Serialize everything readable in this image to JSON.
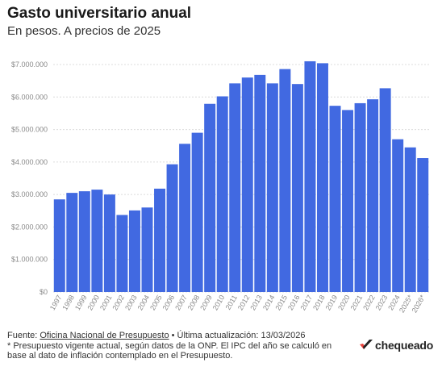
{
  "chart_data": {
    "type": "bar",
    "title": "Gasto universitario anual",
    "subtitle": "En pesos. A precios de 2025",
    "categories": [
      "1997",
      "1998",
      "1999",
      "2000",
      "2001",
      "2002",
      "2003",
      "2004",
      "2005",
      "2006",
      "2007",
      "2008",
      "2009",
      "2010",
      "2011",
      "2012",
      "2013",
      "2014",
      "2015",
      "2016",
      "2017",
      "2018",
      "2019",
      "2020",
      "2021",
      "2022",
      "2023",
      "2024",
      "2025*",
      "2026*"
    ],
    "values": [
      2850000,
      3050000,
      3100000,
      3150000,
      3000000,
      2370000,
      2510000,
      2600000,
      3180000,
      3930000,
      4560000,
      4900000,
      5790000,
      6020000,
      6420000,
      6600000,
      6680000,
      6420000,
      6860000,
      6400000,
      7100000,
      7040000,
      5730000,
      5600000,
      5810000,
      5930000,
      6270000,
      4700000,
      4450000,
      4120000
    ],
    "ylim": [
      0,
      7000000
    ],
    "yticks": [
      0,
      1000000,
      2000000,
      3000000,
      4000000,
      5000000,
      6000000,
      7000000
    ],
    "ytick_labels": [
      "$0",
      "$1.000.000",
      "$2.000.000",
      "$3.000.000",
      "$4.000.000",
      "$5.000.000",
      "$6.000.000",
      "$7.000.000"
    ],
    "xlabel": "",
    "ylabel": "",
    "grid": true,
    "bar_color": "#4169e1"
  },
  "footer": {
    "source_prefix": "Fuente: ",
    "source_link": "Oficina Nacional de Presupuesto",
    "source_suffix": " • Última actualización: 13/03/2026",
    "note": "* Presupuesto vigente actual, según datos de la ONP. El IPC del año se calculó en base al dato de inflación contemplado en el Presupuesto."
  },
  "logo": {
    "text": "chequeado",
    "icon": "chequeado-check-icon",
    "colors": [
      "#e8433c",
      "#222222"
    ]
  }
}
